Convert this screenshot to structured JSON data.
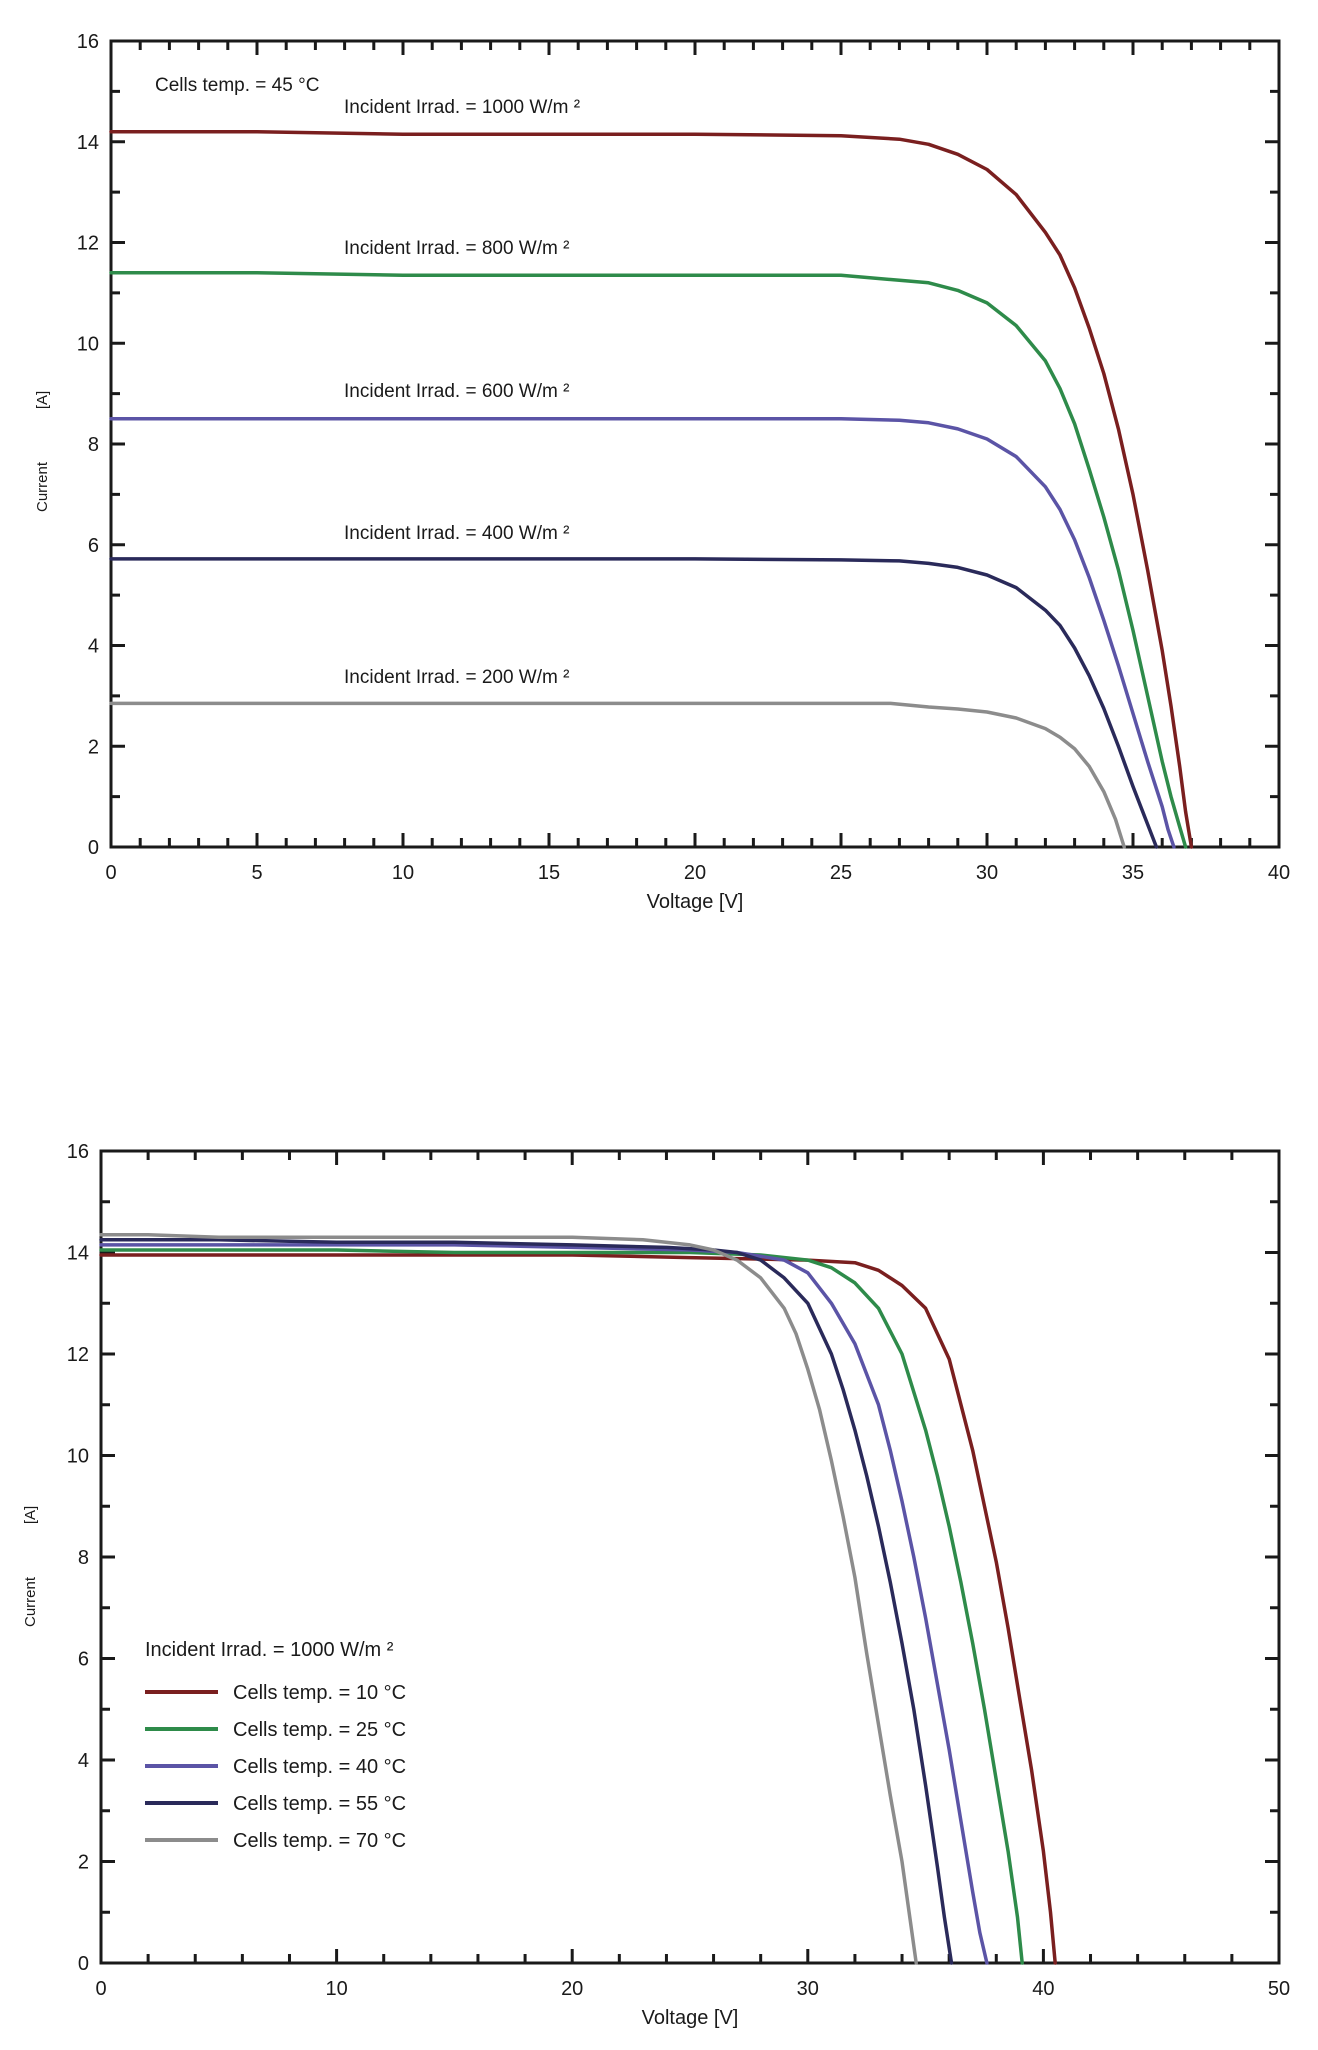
{
  "chart_data": [
    {
      "type": "line",
      "title": "",
      "xlabel": "Voltage  [V]",
      "ylabel": "Current",
      "ylabel_unit": "[A]",
      "xlim": [
        0,
        40
      ],
      "ylim": [
        0,
        16
      ],
      "xticks": [
        0,
        5,
        10,
        15,
        20,
        25,
        30,
        35,
        40
      ],
      "yticks": [
        0,
        2,
        4,
        6,
        8,
        10,
        12,
        14,
        16
      ],
      "grid": false,
      "annotations": {
        "cells_temp": "Cells temp. = 45  °C"
      },
      "series": [
        {
          "name": "Incident Irrad. = 1000 W/m ²",
          "color": "#7a1f1f",
          "x": [
            0,
            5,
            10,
            15,
            20,
            25,
            27,
            28,
            29,
            30,
            31,
            32,
            32.5,
            33,
            33.5,
            34,
            34.5,
            35,
            35.5,
            36,
            36.3,
            36.6,
            36.8,
            37.0
          ],
          "y": [
            14.2,
            14.2,
            14.15,
            14.15,
            14.15,
            14.12,
            14.05,
            13.95,
            13.75,
            13.45,
            12.95,
            12.2,
            11.75,
            11.1,
            10.3,
            9.4,
            8.3,
            7.0,
            5.5,
            3.9,
            2.8,
            1.6,
            0.7,
            0.0
          ]
        },
        {
          "name": "Incident Irrad. = 800 W/m ²",
          "color": "#2e8b4a",
          "x": [
            0,
            5,
            10,
            15,
            20,
            25,
            27,
            28,
            29,
            30,
            31,
            32,
            32.5,
            33,
            33.5,
            34,
            34.5,
            35,
            35.5,
            36,
            36.3,
            36.6,
            36.8
          ],
          "y": [
            11.4,
            11.4,
            11.35,
            11.35,
            11.35,
            11.35,
            11.25,
            11.2,
            11.05,
            10.8,
            10.35,
            9.65,
            9.1,
            8.4,
            7.5,
            6.55,
            5.5,
            4.3,
            3.0,
            1.7,
            1.0,
            0.4,
            0.0
          ]
        },
        {
          "name": "Incident Irrad. = 600 W/m ²",
          "color": "#5b54a6",
          "x": [
            0,
            5,
            10,
            15,
            20,
            25,
            27,
            28,
            29,
            30,
            31,
            32,
            32.5,
            33,
            33.5,
            34,
            34.5,
            35,
            35.5,
            36,
            36.2,
            36.4
          ],
          "y": [
            8.5,
            8.5,
            8.5,
            8.5,
            8.5,
            8.5,
            8.47,
            8.42,
            8.3,
            8.1,
            7.75,
            7.15,
            6.7,
            6.1,
            5.35,
            4.5,
            3.6,
            2.65,
            1.7,
            0.8,
            0.35,
            0.0
          ]
        },
        {
          "name": "Incident Irrad. = 400 W/m ²",
          "color": "#2a2a5a",
          "x": [
            0,
            5,
            10,
            15,
            20,
            25,
            27,
            28,
            29,
            30,
            31,
            32,
            32.5,
            33,
            33.5,
            34,
            34.5,
            35,
            35.5,
            35.8
          ],
          "y": [
            5.72,
            5.72,
            5.72,
            5.72,
            5.72,
            5.7,
            5.68,
            5.63,
            5.55,
            5.4,
            5.15,
            4.7,
            4.4,
            3.95,
            3.4,
            2.75,
            2.0,
            1.2,
            0.45,
            0.0
          ]
        },
        {
          "name": "Incident Irrad. = 200 W/m ²",
          "color": "#8c8c8c",
          "x": [
            0,
            5,
            10,
            15,
            20,
            25,
            26.7,
            28,
            29,
            30,
            31,
            32,
            32.5,
            33,
            33.5,
            34,
            34.4,
            34.7
          ],
          "y": [
            2.85,
            2.85,
            2.85,
            2.85,
            2.85,
            2.85,
            2.85,
            2.78,
            2.74,
            2.68,
            2.56,
            2.35,
            2.18,
            1.95,
            1.6,
            1.1,
            0.55,
            0.0
          ]
        }
      ]
    },
    {
      "type": "line",
      "title": "",
      "xlabel": "Voltage  [V]",
      "ylabel": "Current",
      "ylabel_unit": "[A]",
      "xlim": [
        0,
        50
      ],
      "ylim": [
        0,
        16
      ],
      "xticks": [
        0,
        10,
        20,
        30,
        40,
        50
      ],
      "yticks": [
        0,
        2,
        4,
        6,
        8,
        10,
        12,
        14,
        16
      ],
      "grid": false,
      "legend_title": "Incident Irrad. = 1000 W/m ²",
      "legend_position": "lower-left",
      "series": [
        {
          "name": "Cells temp. = 10  °C",
          "color": "#7a1f1f",
          "x": [
            0,
            5,
            10,
            15,
            20,
            25,
            30,
            32,
            33,
            34,
            35,
            36,
            37,
            37.5,
            38,
            38.5,
            39,
            39.5,
            40,
            40.3,
            40.5
          ],
          "y": [
            13.95,
            13.95,
            13.95,
            13.95,
            13.95,
            13.9,
            13.85,
            13.8,
            13.65,
            13.35,
            12.9,
            11.9,
            10.1,
            9.0,
            7.9,
            6.6,
            5.2,
            3.8,
            2.2,
            1.0,
            0.0
          ]
        },
        {
          "name": "Cells temp. = 25  °C",
          "color": "#2e8b4a",
          "x": [
            0,
            5,
            10,
            15,
            20,
            25,
            28,
            30,
            31,
            32,
            33,
            34,
            35,
            35.5,
            36,
            36.5,
            37,
            37.5,
            38,
            38.5,
            38.9,
            39.1
          ],
          "y": [
            14.05,
            14.05,
            14.05,
            14.0,
            14.0,
            14.0,
            13.95,
            13.85,
            13.7,
            13.4,
            12.9,
            12.0,
            10.5,
            9.6,
            8.6,
            7.5,
            6.3,
            5.0,
            3.6,
            2.2,
            0.9,
            0.0
          ]
        },
        {
          "name": "Cells temp. = 40  °C",
          "color": "#5b54a6",
          "x": [
            0,
            5,
            10,
            15,
            20,
            25,
            27,
            29,
            30,
            31,
            32,
            33,
            33.5,
            34,
            34.5,
            35,
            35.5,
            36,
            36.5,
            37,
            37.3,
            37.6
          ],
          "y": [
            14.15,
            14.15,
            14.15,
            14.15,
            14.1,
            14.05,
            14.0,
            13.85,
            13.6,
            13.0,
            12.2,
            11.0,
            10.1,
            9.1,
            8.0,
            6.8,
            5.5,
            4.2,
            2.8,
            1.4,
            0.6,
            0.0
          ]
        },
        {
          "name": "Cells temp. = 55  °C",
          "color": "#2a2a5a",
          "x": [
            0,
            5,
            10,
            15,
            20,
            24,
            26,
            27,
            28,
            29,
            30,
            31,
            31.5,
            32,
            32.5,
            33,
            33.5,
            34,
            34.5,
            35,
            35.5,
            35.8,
            36.1
          ],
          "y": [
            14.25,
            14.25,
            14.2,
            14.2,
            14.15,
            14.1,
            14.05,
            14.0,
            13.85,
            13.5,
            13.0,
            12.0,
            11.3,
            10.5,
            9.6,
            8.6,
            7.5,
            6.3,
            5.0,
            3.5,
            1.9,
            0.9,
            0.0
          ]
        },
        {
          "name": "Cells temp. = 70  °C",
          "color": "#8c8c8c",
          "x": [
            0,
            2,
            5,
            10,
            15,
            20,
            23,
            25,
            26,
            27,
            28,
            29,
            29.5,
            30,
            30.5,
            31,
            31.5,
            32,
            32.5,
            33,
            33.5,
            34,
            34.3,
            34.6
          ],
          "y": [
            14.35,
            14.35,
            14.3,
            14.3,
            14.3,
            14.3,
            14.25,
            14.15,
            14.05,
            13.85,
            13.5,
            12.9,
            12.4,
            11.7,
            10.9,
            9.9,
            8.8,
            7.6,
            6.1,
            4.7,
            3.3,
            2.0,
            1.0,
            0.0
          ]
        }
      ]
    }
  ]
}
